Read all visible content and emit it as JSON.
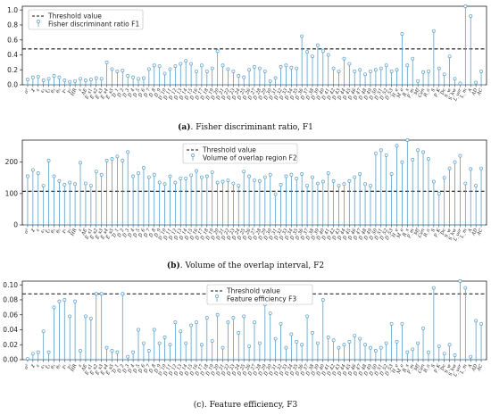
{
  "feature_labels": [
    "σ²",
    "χ",
    "ε",
    "ε₁",
    "ξ₁",
    "θ₁",
    "θ₂",
    "γ₁",
    "γ₂",
    "HR",
    "ε",
    "AE",
    "E_s1",
    "E_s2",
    "E_s3",
    "E_s4",
    "E_s5",
    "D_1",
    "D_2",
    "D_3",
    "D_4",
    "D_5",
    "D_6",
    "D_7",
    "D_8",
    "D_9",
    "D_10",
    "D_11",
    "D_12",
    "D_13",
    "D_14",
    "D_15",
    "D_16",
    "D_17",
    "D_18",
    "D_19",
    "D_20",
    "D_21",
    "D_22",
    "D_23",
    "D_24",
    "D_25",
    "D_26",
    "D_27",
    "D_28",
    "D_29",
    "D_30",
    "D_31",
    "D_32",
    "D_33",
    "D_34",
    "D_35",
    "D_36",
    "D_37",
    "D_38",
    "D_39",
    "D_40",
    "D_41",
    "D_42",
    "D_43",
    "D_44",
    "D_45",
    "D_46",
    "D_47",
    "D_48",
    "D_49",
    "D_50",
    "D_51",
    "D_52",
    "D_53",
    "H_e",
    "M_e",
    "R_s",
    "P_m",
    "Mf",
    "Cen",
    "R_a",
    "S",
    "P_K",
    "Dc",
    "S_w",
    "S_kw",
    "L_var",
    "L_m",
    "A",
    "AD",
    "AC"
  ],
  "chart_data": [
    {
      "type": "stem",
      "caption_bold": "(a)",
      "caption_text": ". Fisher discriminant ratio, F1",
      "ylim": [
        0,
        1.05
      ],
      "yticks": [
        "0.0",
        "0.2",
        "0.4",
        "0.6",
        "0.8",
        "1.0"
      ],
      "threshold": 0.48,
      "legend": [
        "Threshold value",
        "Fisher discriminant ratio F1"
      ],
      "color": "#5a9ec9",
      "values": [
        0.07,
        0.1,
        0.11,
        0.06,
        0.08,
        0.12,
        0.1,
        0.06,
        0.04,
        0.05,
        0.08,
        0.06,
        0.07,
        0.09,
        0.08,
        0.3,
        0.21,
        0.18,
        0.19,
        0.12,
        0.1,
        0.08,
        0.09,
        0.21,
        0.26,
        0.25,
        0.15,
        0.21,
        0.25,
        0.28,
        0.32,
        0.28,
        0.18,
        0.26,
        0.18,
        0.22,
        0.45,
        0.26,
        0.21,
        0.18,
        0.12,
        0.1,
        0.2,
        0.24,
        0.22,
        0.18,
        0.05,
        0.09,
        0.24,
        0.26,
        0.23,
        0.22,
        0.65,
        0.44,
        0.38,
        0.53,
        0.45,
        0.4,
        0.22,
        0.18,
        0.35,
        0.28,
        0.18,
        0.2,
        0.14,
        0.18,
        0.2,
        0.22,
        0.26,
        0.18,
        0.2,
        0.68,
        0.26,
        0.35,
        0.05,
        0.17,
        0.18,
        0.72,
        0.22,
        0.14,
        0.38,
        0.08,
        0.02,
        1.05,
        0.92,
        0.03,
        0.18
      ]
    },
    {
      "type": "stem",
      "caption_bold": "(b)",
      "caption_text": ". Volume of the overlap interval, F2",
      "ylim": [
        0,
        270
      ],
      "yticks": [
        "0",
        "100",
        "200"
      ],
      "threshold": 107,
      "legend": [
        "Threshold value",
        "Volume of overlap region F2"
      ],
      "color": "#5a9ec9",
      "values": [
        155,
        175,
        165,
        125,
        205,
        155,
        140,
        128,
        135,
        130,
        198,
        132,
        125,
        170,
        160,
        205,
        210,
        218,
        205,
        232,
        155,
        165,
        182,
        152,
        160,
        135,
        130,
        155,
        135,
        148,
        148,
        158,
        172,
        152,
        155,
        168,
        135,
        138,
        142,
        132,
        125,
        170,
        155,
        142,
        140,
        152,
        160,
        98,
        128,
        155,
        160,
        148,
        162,
        125,
        152,
        132,
        138,
        165,
        140,
        125,
        130,
        140,
        152,
        162,
        130,
        125,
        228,
        238,
        222,
        162,
        252,
        200,
        280,
        208,
        238,
        232,
        210,
        138,
        100,
        150,
        180,
        200,
        220,
        132,
        178,
        125,
        180
      ]
    },
    {
      "type": "stem",
      "caption_bold": "",
      "caption_text": "(c). Feature efficiency, F3",
      "ylim": [
        0,
        0.105
      ],
      "yticks": [
        "0.00",
        "0.02",
        "0.04",
        "0.06",
        "0.08",
        "0.10"
      ],
      "threshold": 0.088,
      "legend": [
        "Threshold value",
        "Feature efficiency F3"
      ],
      "color": "#5a9ec9",
      "values": [
        0.001,
        0.008,
        0.01,
        0.038,
        0.01,
        0.07,
        0.078,
        0.08,
        0.058,
        0.078,
        0.012,
        0.058,
        0.055,
        0.088,
        0.088,
        0.016,
        0.012,
        0.01,
        0.088,
        0.004,
        0.01,
        0.04,
        0.022,
        0.012,
        0.04,
        0.022,
        0.03,
        0.02,
        0.05,
        0.038,
        0.022,
        0.046,
        0.05,
        0.02,
        0.056,
        0.025,
        0.06,
        0.016,
        0.05,
        0.056,
        0.036,
        0.058,
        0.018,
        0.05,
        0.022,
        0.074,
        0.062,
        0.028,
        0.048,
        0.016,
        0.034,
        0.024,
        0.02,
        0.058,
        0.036,
        0.022,
        0.08,
        0.03,
        0.026,
        0.016,
        0.02,
        0.024,
        0.032,
        0.028,
        0.02,
        0.016,
        0.012,
        0.016,
        0.022,
        0.048,
        0.024,
        0.048,
        0.01,
        0.014,
        0.022,
        0.042,
        0.01,
        0.096,
        0.018,
        0.008,
        0.02,
        0.006,
        0.105,
        0.096,
        0.004,
        0.052,
        0.048
      ]
    }
  ]
}
